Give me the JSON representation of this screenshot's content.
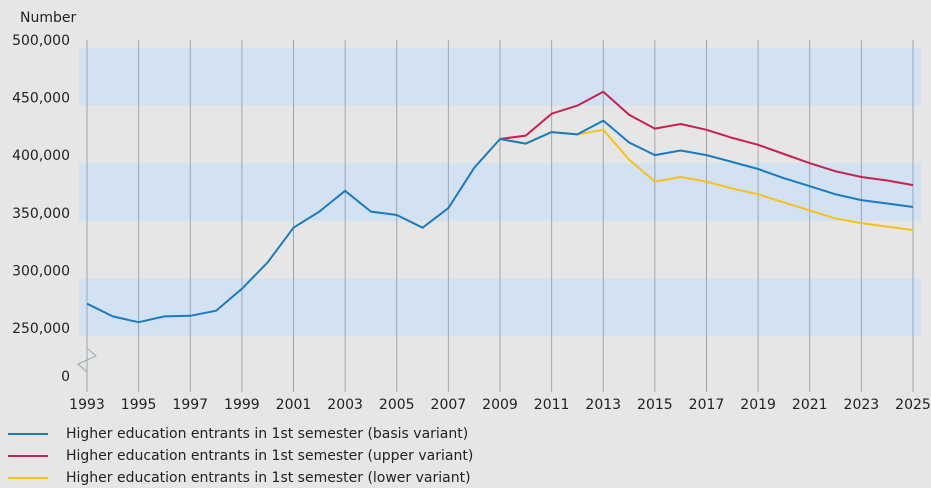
{
  "chart_data": {
    "type": "line",
    "y_label": "Number",
    "x": [
      1993,
      1994,
      1995,
      1996,
      1997,
      1998,
      1999,
      2000,
      2001,
      2002,
      2003,
      2004,
      2005,
      2006,
      2007,
      2008,
      2009,
      2010,
      2011,
      2012,
      2013,
      2014,
      2015,
      2016,
      2017,
      2018,
      2019,
      2020,
      2021,
      2022,
      2023,
      2024,
      2025
    ],
    "xlim": [
      1993,
      2025
    ],
    "xticks": [
      1993,
      1995,
      1997,
      1999,
      2001,
      2003,
      2005,
      2007,
      2009,
      2011,
      2013,
      2015,
      2017,
      2019,
      2021,
      2023,
      2025
    ],
    "ylim": [
      0,
      500000
    ],
    "y_break": true,
    "yticks": [
      0,
      {
        "value": 250000,
        "label": "250,000"
      },
      {
        "value": 300000,
        "label": "300,000"
      },
      {
        "value": 350000,
        "label": "350,000"
      },
      {
        "value": 400000,
        "label": "400,000"
      },
      {
        "value": 450000,
        "label": "450,000"
      },
      {
        "value": 500000,
        "label": "500,000"
      }
    ],
    "grid": true,
    "series": [
      {
        "name": "Higher education entrants in 1st semester (basis variant)",
        "color": "#1a7bbf",
        "values": [
          278000,
          267000,
          262000,
          267000,
          267500,
          272000,
          291000,
          314000,
          344000,
          358000,
          376000,
          358000,
          355000,
          344000,
          361000,
          396000,
          421000,
          417000,
          427000,
          425000,
          437000,
          418000,
          407000,
          411000,
          407000,
          401000,
          395000,
          387000,
          380000,
          373000,
          368000,
          365000,
          362000
        ]
      },
      {
        "name": "Higher education entrants in 1st semester (upper variant)",
        "color": "#c8204f",
        "values": [
          null,
          null,
          null,
          null,
          null,
          null,
          null,
          null,
          null,
          null,
          null,
          null,
          null,
          null,
          null,
          null,
          421000,
          424000,
          443000,
          450000,
          462000,
          442000,
          430000,
          434000,
          429000,
          422000,
          416000,
          408000,
          400000,
          393000,
          388000,
          385000,
          381000
        ]
      },
      {
        "name": "Higher education entrants in 1st semester (lower variant)",
        "color": "#f5c21b",
        "values": [
          null,
          null,
          null,
          null,
          null,
          null,
          null,
          null,
          null,
          null,
          null,
          null,
          null,
          null,
          null,
          null,
          421000,
          417000,
          427000,
          425000,
          429000,
          403000,
          384000,
          388000,
          384000,
          378000,
          373000,
          366000,
          359000,
          352000,
          348000,
          345000,
          342000
        ]
      }
    ]
  }
}
